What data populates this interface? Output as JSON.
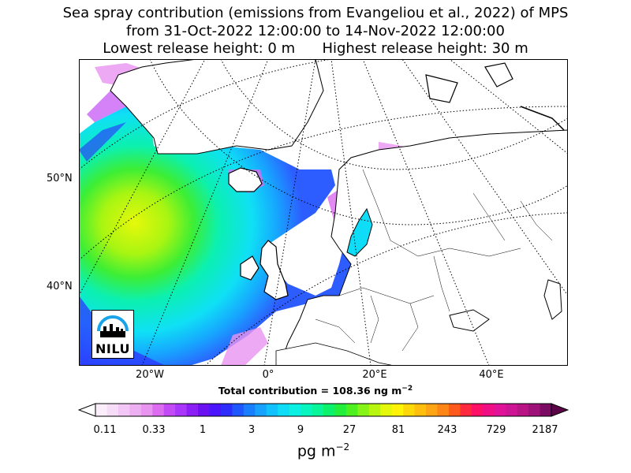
{
  "title": {
    "line1": "Sea spray contribution (emissions from Evangeliou et al., 2022) of MPS",
    "line2": "from 31-Oct-2022 12:00:00 to 14-Nov-2022 12:00:00",
    "line3": "Lowest release height: 0 m      Highest release height: 30 m"
  },
  "axes": {
    "lat_labels": [
      "50°N",
      "40°N"
    ],
    "lon_labels": [
      "20°W",
      "0°",
      "20°E",
      "40°E"
    ]
  },
  "total_contribution": "Total contribution = 108.36 ng m",
  "total_contribution_exp": "−2",
  "colorbar": {
    "ticks": [
      "0.11",
      "0.33",
      "1",
      "3",
      "9",
      "27",
      "81",
      "243",
      "729",
      "2187"
    ],
    "unit": "pg m",
    "unit_exp": "−2",
    "colors": [
      "#fbeefb",
      "#f7dcf8",
      "#f2c6f5",
      "#edaff2",
      "#e894f0",
      "#dc6cf0",
      "#c34bf5",
      "#a936fa",
      "#8c1ff5",
      "#6a12f2",
      "#4a14ff",
      "#2f2cff",
      "#1f57ff",
      "#1a7fff",
      "#17a2ff",
      "#12c1ff",
      "#0fdcf7",
      "#0cf0e4",
      "#09f5c0",
      "#08f59a",
      "#0cf26c",
      "#22ee3c",
      "#4ef020",
      "#86f416",
      "#b8f60f",
      "#e4f80a",
      "#fff407",
      "#ffd80a",
      "#ffbf0c",
      "#ffa412",
      "#ff8616",
      "#ff5a1c",
      "#ff2a3e",
      "#ff1066",
      "#f00e84",
      "#e0129a",
      "#cc1494",
      "#b81486",
      "#9e1178",
      "#7a0a62"
    ]
  },
  "logo": {
    "text": "NILU"
  }
}
